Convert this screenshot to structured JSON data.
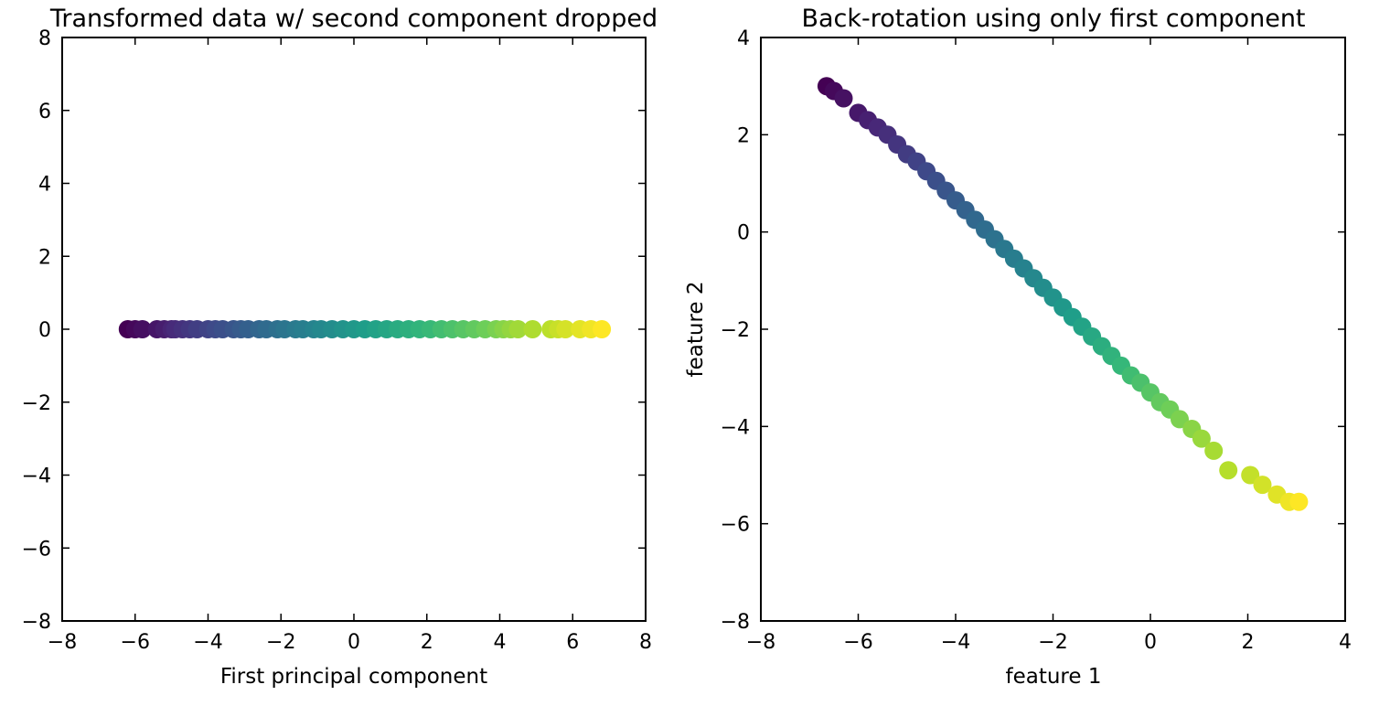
{
  "chart_data": [
    {
      "type": "scatter",
      "title": "Transformed data w/ second component dropped",
      "xlabel": "First principal component",
      "ylabel": "",
      "xlim": [
        -8,
        8
      ],
      "ylim": [
        -8,
        8
      ],
      "xticks": [
        -8,
        -6,
        -4,
        -2,
        0,
        2,
        4,
        6,
        8
      ],
      "yticks": [
        -8,
        -6,
        -4,
        -2,
        0,
        2,
        4,
        6,
        8
      ],
      "grid": false,
      "colormap": "viridis",
      "colormap_colors": [
        "#440154",
        "#482878",
        "#3e4989",
        "#31688e",
        "#26828e",
        "#1f9e89",
        "#35b779",
        "#6ece58",
        "#b5de2b",
        "#fde725"
      ],
      "series": [
        {
          "x": [
            -6.2,
            -6.0,
            -5.8,
            -5.4,
            -5.2,
            -5.0,
            -4.9,
            -4.7,
            -4.5,
            -4.3,
            -4.0,
            -3.8,
            -3.6,
            -3.3,
            -3.1,
            -2.9,
            -2.6,
            -2.4,
            -2.1,
            -1.9,
            -1.6,
            -1.4,
            -1.1,
            -0.9,
            -0.6,
            -0.3,
            0.0,
            0.3,
            0.6,
            0.9,
            1.2,
            1.5,
            1.8,
            2.1,
            2.4,
            2.7,
            3.0,
            3.3,
            3.6,
            3.9,
            4.1,
            4.3,
            4.5,
            4.9,
            5.4,
            5.6,
            5.8,
            6.2,
            6.5,
            6.8
          ],
          "y": [
            0,
            0,
            0,
            0,
            0,
            0,
            0,
            0,
            0,
            0,
            0,
            0,
            0,
            0,
            0,
            0,
            0,
            0,
            0,
            0,
            0,
            0,
            0,
            0,
            0,
            0,
            0,
            0,
            0,
            0,
            0,
            0,
            0,
            0,
            0,
            0,
            0,
            0,
            0,
            0,
            0,
            0,
            0,
            0,
            0,
            0,
            0,
            0,
            0,
            0
          ]
        }
      ]
    },
    {
      "type": "scatter",
      "title": "Back-rotation using only first component",
      "xlabel": "feature 1",
      "ylabel": "feature 2",
      "xlim": [
        -8,
        4
      ],
      "ylim": [
        -8,
        4
      ],
      "xticks": [
        -8,
        -6,
        -4,
        -2,
        0,
        2,
        4
      ],
      "yticks": [
        -8,
        -6,
        -4,
        -2,
        0,
        2,
        4
      ],
      "grid": false,
      "colormap": "viridis",
      "colormap_colors": [
        "#440154",
        "#482878",
        "#3e4989",
        "#31688e",
        "#26828e",
        "#1f9e89",
        "#35b779",
        "#6ece58",
        "#b5de2b",
        "#fde725"
      ],
      "series": [
        {
          "x": [
            -6.65,
            -6.5,
            -6.3,
            -6.0,
            -5.8,
            -5.6,
            -5.4,
            -5.2,
            -5.0,
            -4.8,
            -4.6,
            -4.4,
            -4.2,
            -4.0,
            -3.8,
            -3.6,
            -3.4,
            -3.2,
            -3.0,
            -2.8,
            -2.6,
            -2.4,
            -2.2,
            -2.0,
            -1.8,
            -1.6,
            -1.4,
            -1.2,
            -1.0,
            -0.8,
            -0.6,
            -0.4,
            -0.2,
            0.0,
            0.2,
            0.4,
            0.6,
            0.85,
            1.05,
            1.3,
            1.6,
            2.05,
            2.3,
            2.6,
            2.85,
            3.05
          ],
          "y": [
            3.0,
            2.9,
            2.75,
            2.45,
            2.3,
            2.15,
            2.0,
            1.8,
            1.6,
            1.45,
            1.25,
            1.05,
            0.85,
            0.65,
            0.45,
            0.25,
            0.05,
            -0.15,
            -0.35,
            -0.55,
            -0.75,
            -0.95,
            -1.15,
            -1.35,
            -1.55,
            -1.75,
            -1.95,
            -2.15,
            -2.35,
            -2.55,
            -2.75,
            -2.95,
            -3.1,
            -3.3,
            -3.5,
            -3.65,
            -3.85,
            -4.05,
            -4.25,
            -4.5,
            -4.9,
            -5.0,
            -5.2,
            -5.4,
            -5.55,
            -5.55
          ]
        }
      ]
    }
  ]
}
